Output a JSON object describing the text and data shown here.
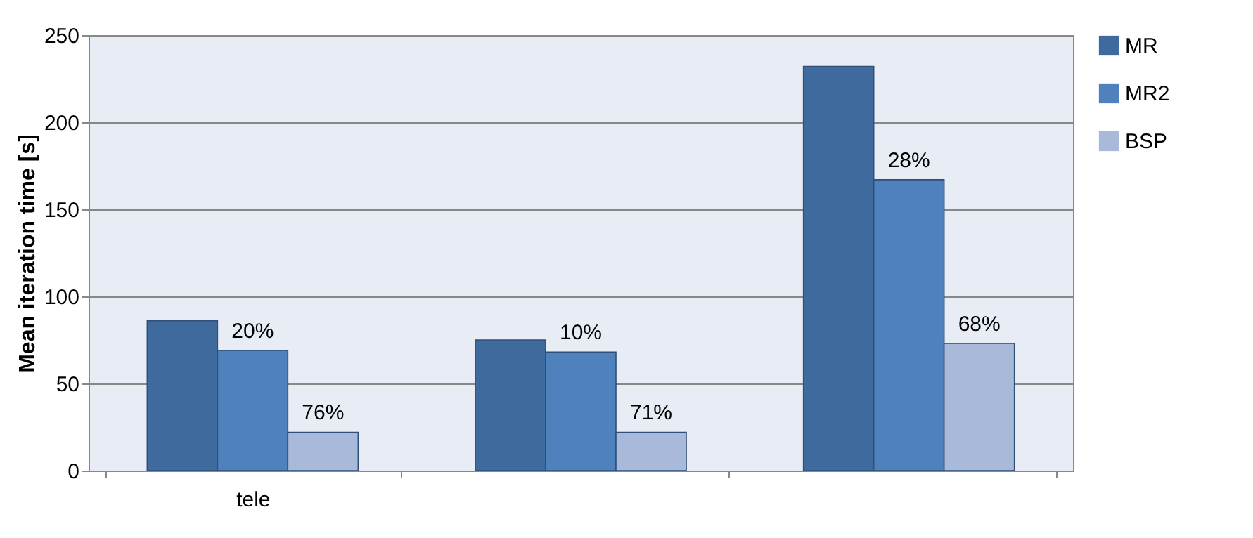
{
  "chart_data": {
    "type": "bar",
    "ylabel": "Mean iteration time [s]",
    "categories": [
      "tele",
      null,
      null
    ],
    "series": [
      {
        "name": "MR",
        "color": "#3f6a9e",
        "values": [
          86,
          75,
          232
        ]
      },
      {
        "name": "MR2",
        "color": "#4f81bd",
        "values": [
          69,
          68,
          167
        ]
      },
      {
        "name": "BSP",
        "color": "#a9b9d9",
        "values": [
          22,
          22,
          73
        ]
      }
    ],
    "annotations": [
      {
        "text": "20%",
        "x": "tele",
        "y": 69
      },
      {
        "text": "76%",
        "y": 22
      },
      {
        "text": "10%",
        "y": 68
      },
      {
        "text": "71%",
        "y": 22
      },
      {
        "text": "28%",
        "y": 167
      },
      {
        "text": "68%",
        "y": 73
      }
    ],
    "ylim": [
      0,
      250
    ],
    "yticks": [
      0,
      50,
      100,
      150,
      200,
      250
    ],
    "grid": "y",
    "legend": "right"
  }
}
